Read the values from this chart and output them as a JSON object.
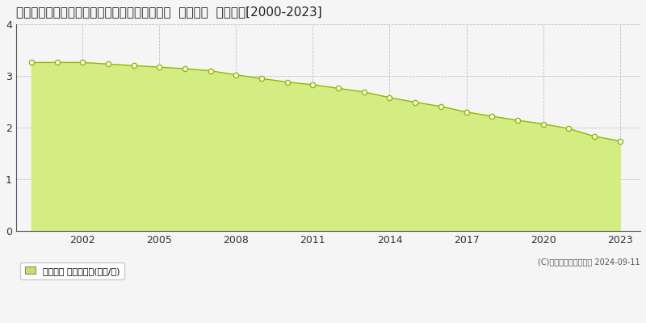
{
  "title": "鹿児島県熊毛郡南種子町茎永字白木峯８０番３  地価公示  地価推移[2000-2023]",
  "years": [
    2000,
    2001,
    2002,
    2003,
    2004,
    2005,
    2006,
    2007,
    2008,
    2009,
    2010,
    2011,
    2012,
    2013,
    2014,
    2015,
    2016,
    2017,
    2018,
    2019,
    2020,
    2021,
    2022,
    2023
  ],
  "values": [
    3.26,
    3.26,
    3.26,
    3.23,
    3.2,
    3.17,
    3.14,
    3.1,
    3.02,
    2.95,
    2.88,
    2.83,
    2.76,
    2.69,
    2.58,
    2.49,
    2.41,
    2.3,
    2.22,
    2.14,
    2.07,
    1.98,
    1.83,
    1.74
  ],
  "fill_color": "#d4ed82",
  "line_color": "#8fb800",
  "marker_color": "#ffffff",
  "marker_edge_color": "#8fb800",
  "background_color": "#f5f5f5",
  "plot_bg_color": "#f5f5f5",
  "grid_color": "#bbbbbb",
  "title_fontsize": 11,
  "legend_label": "地価公示 平均坪単価(万円/坪)",
  "legend_color": "#c8e060",
  "copyright_text": "(C)土地価格ドットコム 2024-09-11",
  "xlim": [
    1999.4,
    2023.8
  ],
  "ylim": [
    0,
    4
  ],
  "yticks": [
    0,
    1,
    2,
    3,
    4
  ],
  "xticks": [
    2002,
    2005,
    2008,
    2011,
    2014,
    2017,
    2020,
    2023
  ]
}
